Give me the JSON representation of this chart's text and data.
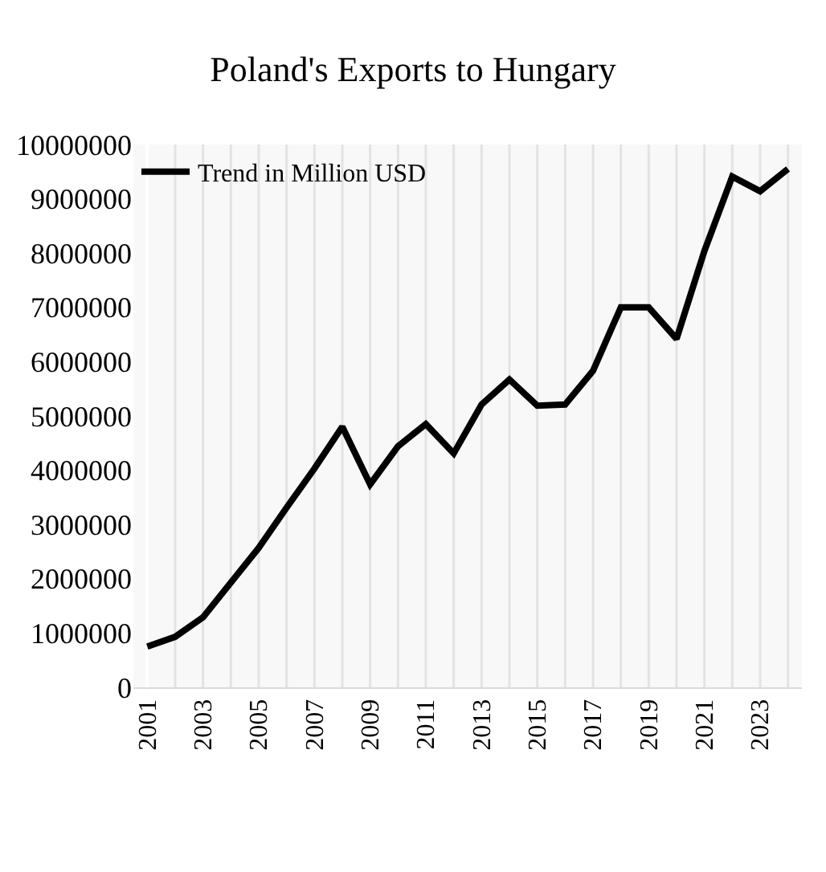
{
  "chart_data": {
    "type": "line",
    "title": "Poland's Exports to Hungary",
    "categories": [
      "2001",
      null,
      "2003",
      null,
      "2005",
      null,
      "2007",
      null,
      "2009",
      null,
      "2011",
      null,
      "2013",
      null,
      "2015",
      null,
      "2017",
      null,
      "2019",
      null,
      "2021",
      null,
      "2023",
      null
    ],
    "series": [
      {
        "name": "Trend in Million USD",
        "color": "#000000",
        "values": [
          750000,
          930000,
          1290000,
          1930000,
          2570000,
          3310000,
          4030000,
          4800000,
          3740000,
          4440000,
          4850000,
          4310000,
          5210000,
          5670000,
          5190000,
          5210000,
          5830000,
          7000000,
          7000000,
          6420000,
          8040000,
          9410000,
          9140000,
          9550000
        ]
      }
    ],
    "ylim": [
      0,
      10000000
    ],
    "yticks": [
      0,
      1000000,
      2000000,
      3000000,
      4000000,
      5000000,
      6000000,
      7000000,
      8000000,
      9000000,
      10000000
    ],
    "grid": "x",
    "legend": "top left",
    "marker": "none",
    "line_style": "solid"
  }
}
